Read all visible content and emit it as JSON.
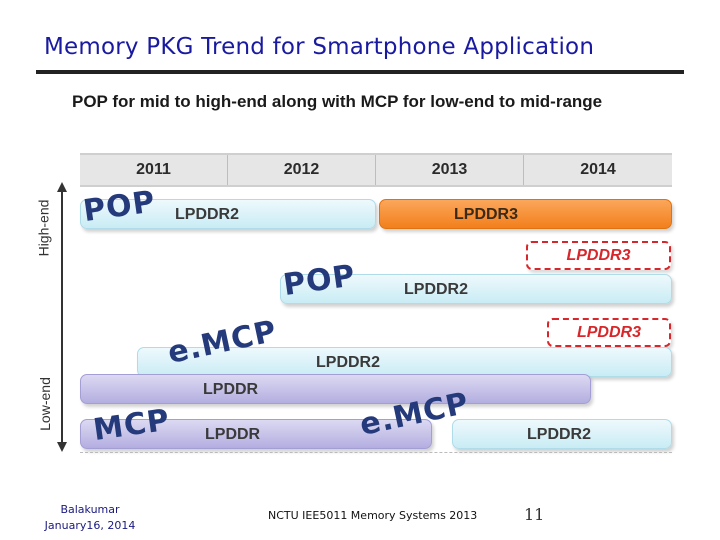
{
  "title": "Memory PKG Trend for Smartphone Application",
  "subtitle": "POP for mid to high-end along with MCP for low-end to mid-range",
  "years": [
    "2011",
    "2012",
    "2013",
    "2014"
  ],
  "axis": {
    "high": "High-end",
    "low": "Low-end"
  },
  "rows": {
    "pop_high": {
      "pkg": "POP",
      "label": "LPDDR2",
      "next": "LPDDR3"
    },
    "pop_mid_future": {
      "label": "LPDDR3"
    },
    "pop_mid": {
      "pkg": "POP",
      "label": "LPDDR2"
    },
    "emcp_future": {
      "label": "LPDDR3"
    },
    "emcp": {
      "pkg": "e.MCP",
      "label": "LPDDR2"
    },
    "lpddr_low": {
      "label": "LPDDR"
    },
    "mcp": {
      "pkg": "MCP",
      "label": "LPDDR"
    },
    "emcp_low": {
      "pkg": "e.MCP",
      "label": "LPDDR2"
    }
  },
  "footer": {
    "author": "Balakumar",
    "date": "January16, 2014",
    "course": "NCTU IEE5011 Memory Systems 2013",
    "page": "11"
  },
  "colors": {
    "title": "#1a1aa0",
    "accent_orange": "#f27f1c",
    "dashed_red": "#d8262a"
  }
}
